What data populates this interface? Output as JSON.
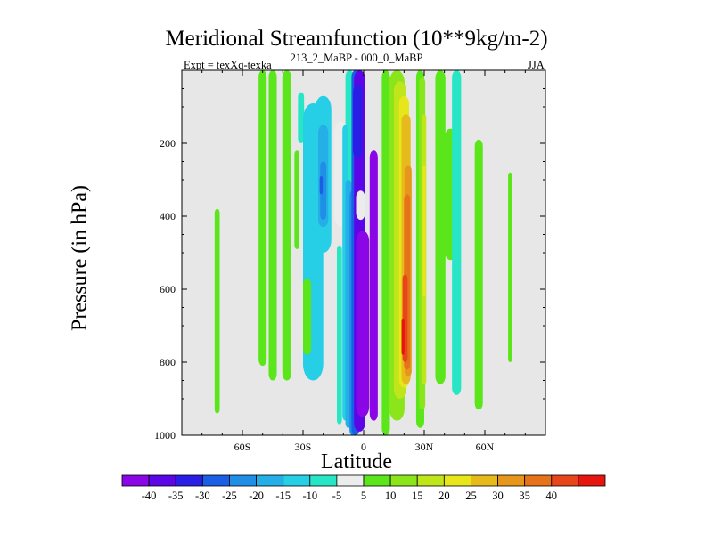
{
  "chart_data": {
    "type": "filled-contour",
    "title": "Meridional Streamfunction (10**9kg/m-2)",
    "left_string": "Expt = texXq-texka",
    "center_string": "213_2_MaBP - 000_0_MaBP",
    "right_string": "JJA",
    "xlabel": "Latitude",
    "ylabel": "Pressure (in hPa)",
    "xlim": [
      -90,
      90
    ],
    "ylim": [
      1000,
      0
    ],
    "x_ticks": [
      {
        "value": -60,
        "label": "60S"
      },
      {
        "value": -30,
        "label": "30S"
      },
      {
        "value": 0,
        "label": "0"
      },
      {
        "value": 30,
        "label": "30N"
      },
      {
        "value": 60,
        "label": "60N"
      }
    ],
    "y_ticks": [
      {
        "value": 200,
        "label": "200"
      },
      {
        "value": 400,
        "label": "400"
      },
      {
        "value": 600,
        "label": "600"
      },
      {
        "value": 800,
        "label": "800"
      },
      {
        "value": 1000,
        "label": "1000"
      }
    ],
    "missing_color": "#e7e7e7",
    "colorbar": {
      "colors": [
        "#8a06e6",
        "#5a06e6",
        "#2a1ee6",
        "#1a5ee6",
        "#1e8ee6",
        "#26aee6",
        "#26cee6",
        "#26e6c6",
        "#ececec",
        "#5ae61a",
        "#8ae61a",
        "#bee61a",
        "#e6e61a",
        "#e6ba1a",
        "#e6961a",
        "#e6721a",
        "#e6461a",
        "#e6160e"
      ],
      "labels": [
        "-40",
        "-35",
        "-30",
        "-25",
        "-20",
        "-15",
        "-10",
        "-5",
        "5",
        "10",
        "15",
        "20",
        "25",
        "30",
        "35",
        "40"
      ]
    },
    "fields": [
      {
        "lat": -72.5,
        "w": 2.5,
        "p1": 380,
        "p2": 940,
        "c": 9
      },
      {
        "lat": -50,
        "w": 4,
        "p1": 0,
        "p2": 810,
        "c": 9
      },
      {
        "lat": -45,
        "w": 4,
        "p1": 0,
        "p2": 850,
        "c": 9
      },
      {
        "lat": -38,
        "w": 4.5,
        "p1": 0,
        "p2": 850,
        "c": 9
      },
      {
        "lat": -33,
        "w": 2.5,
        "p1": 220,
        "p2": 490,
        "c": 9
      },
      {
        "lat": -31,
        "w": 3,
        "p1": 60,
        "p2": 200,
        "c": 7
      },
      {
        "lat": -25,
        "w": 10,
        "p1": 90,
        "p2": 850,
        "c": 6
      },
      {
        "lat": -28,
        "w": 4,
        "p1": 570,
        "p2": 780,
        "c": 9
      },
      {
        "lat": -20,
        "w": 8,
        "p1": 70,
        "p2": 500,
        "c": 6
      },
      {
        "lat": -20,
        "w": 5,
        "p1": 150,
        "p2": 430,
        "c": 5
      },
      {
        "lat": -20,
        "w": 3,
        "p1": 250,
        "p2": 410,
        "c": 4
      },
      {
        "lat": -21,
        "w": 1.5,
        "p1": 290,
        "p2": 340,
        "c": 3
      },
      {
        "lat": -11,
        "w": 7,
        "p1": 140,
        "p2": 430,
        "c": 8
      },
      {
        "lat": -7,
        "w": 4,
        "p1": 0,
        "p2": 450,
        "c": 7
      },
      {
        "lat": -12,
        "w": 2.5,
        "p1": 480,
        "p2": 970,
        "c": 7
      },
      {
        "lat": -9,
        "w": 3,
        "p1": 150,
        "p2": 960,
        "c": 6
      },
      {
        "lat": -7.5,
        "w": 3,
        "p1": 300,
        "p2": 980,
        "c": 5
      },
      {
        "lat": -5.5,
        "w": 3,
        "p1": 330,
        "p2": 1000,
        "c": 4
      },
      {
        "lat": -4,
        "w": 4,
        "p1": 0,
        "p2": 1000,
        "c": 3
      },
      {
        "lat": -2,
        "w": 5.5,
        "p1": 0,
        "p2": 990,
        "c": 1
      },
      {
        "lat": -3,
        "w": 4.5,
        "p1": 40,
        "p2": 240,
        "c": 2
      },
      {
        "lat": -0.5,
        "w": 6.5,
        "p1": 440,
        "p2": 950,
        "c": 0
      },
      {
        "lat": 5,
        "w": 4,
        "p1": 220,
        "p2": 960,
        "c": 0
      },
      {
        "lat": -1.5,
        "w": 4.5,
        "p1": 330,
        "p2": 410,
        "c": 8
      },
      {
        "lat": 11,
        "w": 4,
        "p1": 0,
        "p2": 1000,
        "c": 9
      },
      {
        "lat": 16.5,
        "w": 7.5,
        "p1": 0,
        "p2": 960,
        "c": 10
      },
      {
        "lat": 18,
        "w": 6,
        "p1": 30,
        "p2": 900,
        "c": 11
      },
      {
        "lat": 20,
        "w": 5,
        "p1": 70,
        "p2": 870,
        "c": 12
      },
      {
        "lat": 21,
        "w": 4.5,
        "p1": 120,
        "p2": 860,
        "c": 13
      },
      {
        "lat": 22,
        "w": 3.5,
        "p1": 260,
        "p2": 840,
        "c": 14
      },
      {
        "lat": 21.5,
        "w": 3,
        "p1": 340,
        "p2": 820,
        "c": 15
      },
      {
        "lat": 20.5,
        "w": 2.5,
        "p1": 560,
        "p2": 800,
        "c": 16
      },
      {
        "lat": 19.5,
        "w": 1.5,
        "p1": 680,
        "p2": 780,
        "c": 17
      },
      {
        "lat": 28,
        "w": 4,
        "p1": 0,
        "p2": 980,
        "c": 9
      },
      {
        "lat": 29,
        "w": 3,
        "p1": 20,
        "p2": 930,
        "c": 10
      },
      {
        "lat": 30,
        "w": 2,
        "p1": 120,
        "p2": 860,
        "c": 11
      },
      {
        "lat": 30,
        "w": 1.5,
        "p1": 260,
        "p2": 620,
        "c": 12
      },
      {
        "lat": 38,
        "w": 5,
        "p1": 0,
        "p2": 860,
        "c": 9
      },
      {
        "lat": 43,
        "w": 6,
        "p1": 160,
        "p2": 520,
        "c": 9
      },
      {
        "lat": 46,
        "w": 4.5,
        "p1": 0,
        "p2": 890,
        "c": 7
      },
      {
        "lat": 57,
        "w": 4,
        "p1": 190,
        "p2": 930,
        "c": 9
      },
      {
        "lat": 72.5,
        "w": 2,
        "p1": 280,
        "p2": 800,
        "c": 9
      }
    ]
  }
}
